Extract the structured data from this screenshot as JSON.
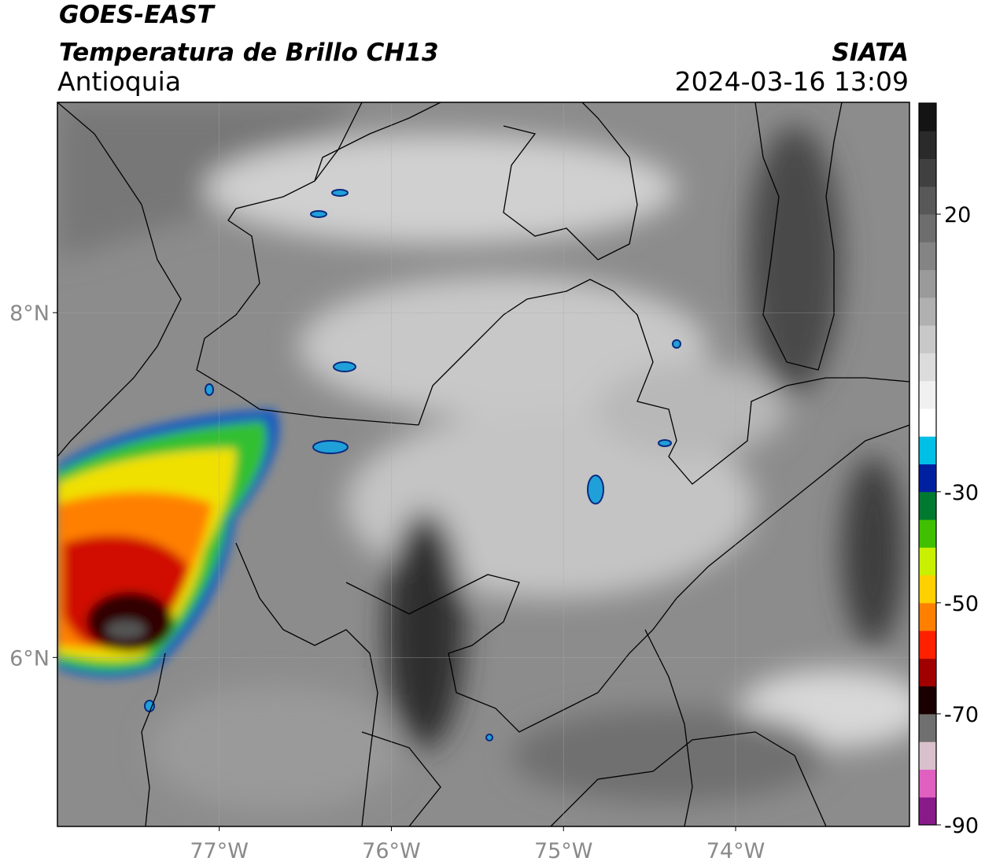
{
  "header": {
    "title": "GOES-EAST",
    "subtitle": "Temperatura de Brillo CH13",
    "region": "Antioquia",
    "source": "SIATA",
    "datetime": "2024-03-16 13:09"
  },
  "map": {
    "xlim": [
      -77.94,
      -72.99
    ],
    "ylim": [
      5.02,
      9.22
    ],
    "xticks": [
      {
        "value": -77,
        "label": "77°W"
      },
      {
        "value": -76,
        "label": "76°W"
      },
      {
        "value": -75,
        "label": "75°W"
      },
      {
        "value": -74,
        "label": "74°W"
      }
    ],
    "yticks": [
      {
        "value": 8,
        "label": "8°N"
      },
      {
        "value": 6,
        "label": "6°N"
      }
    ],
    "grid": true
  },
  "colorbar": {
    "lim": [
      -90,
      40
    ],
    "ticks": [
      20,
      -30,
      -50,
      -70,
      -90
    ],
    "bins": [
      -90,
      -85,
      -80,
      -75,
      -70,
      -65,
      -60,
      -55,
      -50,
      -45,
      -40,
      -35,
      -30,
      -25,
      -20,
      -15,
      -10,
      -5,
      0,
      5,
      10,
      15,
      20,
      25,
      30,
      35,
      40
    ],
    "colors": [
      "#8a1a8a",
      "#e060c0",
      "#d8c0cc",
      "#707070",
      "#1a0000",
      "#a00000",
      "#ff2000",
      "#ff8000",
      "#ffd000",
      "#c8f000",
      "#40c000",
      "#007a30",
      "#0020a0",
      "#00c0e8",
      "#ffffff",
      "#f0f0f0",
      "#dcdcdc",
      "#c8c8c8",
      "#b0b0b0",
      "#9a9a9a",
      "#848484",
      "#6e6e6e",
      "#585858",
      "#404040",
      "#2a2a2a",
      "#141414"
    ]
  }
}
